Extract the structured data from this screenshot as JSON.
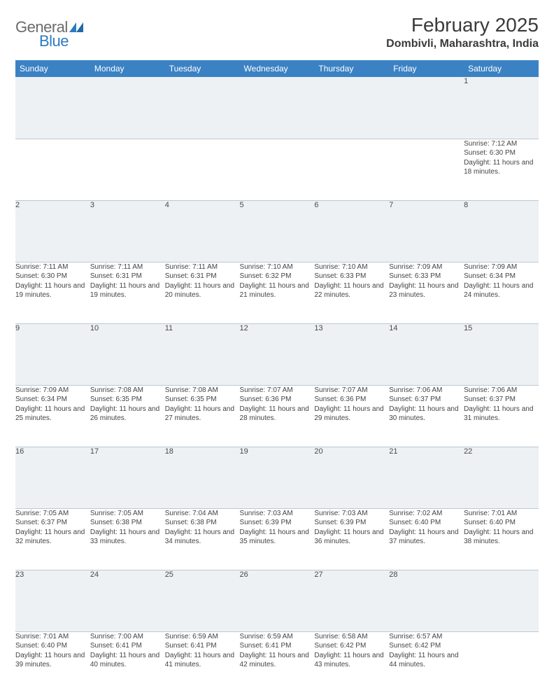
{
  "branding": {
    "logo_general": "General",
    "logo_blue": "Blue",
    "logo_shape_color": "#2d7bbf"
  },
  "header": {
    "title": "February 2025",
    "location": "Dombivli, Maharashtra, India"
  },
  "colors": {
    "header_bg": "#3b82c4",
    "header_text": "#ffffff",
    "daynum_bg": "#eef1f3",
    "border": "#b9c8d6",
    "body_text": "#444"
  },
  "typography": {
    "title_fontsize": 28,
    "subtitle_fontsize": 16,
    "dayheader_fontsize": 12,
    "daynum_fontsize": 11,
    "detail_fontsize": 10
  },
  "calendar": {
    "day_headers": [
      "Sunday",
      "Monday",
      "Tuesday",
      "Wednesday",
      "Thursday",
      "Friday",
      "Saturday"
    ],
    "weeks": [
      {
        "days": [
          {
            "num": "",
            "sunrise": "",
            "sunset": "",
            "daylight": ""
          },
          {
            "num": "",
            "sunrise": "",
            "sunset": "",
            "daylight": ""
          },
          {
            "num": "",
            "sunrise": "",
            "sunset": "",
            "daylight": ""
          },
          {
            "num": "",
            "sunrise": "",
            "sunset": "",
            "daylight": ""
          },
          {
            "num": "",
            "sunrise": "",
            "sunset": "",
            "daylight": ""
          },
          {
            "num": "",
            "sunrise": "",
            "sunset": "",
            "daylight": ""
          },
          {
            "num": "1",
            "sunrise": "Sunrise: 7:12 AM",
            "sunset": "Sunset: 6:30 PM",
            "daylight": "Daylight: 11 hours and 18 minutes."
          }
        ]
      },
      {
        "days": [
          {
            "num": "2",
            "sunrise": "Sunrise: 7:11 AM",
            "sunset": "Sunset: 6:30 PM",
            "daylight": "Daylight: 11 hours and 19 minutes."
          },
          {
            "num": "3",
            "sunrise": "Sunrise: 7:11 AM",
            "sunset": "Sunset: 6:31 PM",
            "daylight": "Daylight: 11 hours and 19 minutes."
          },
          {
            "num": "4",
            "sunrise": "Sunrise: 7:11 AM",
            "sunset": "Sunset: 6:31 PM",
            "daylight": "Daylight: 11 hours and 20 minutes."
          },
          {
            "num": "5",
            "sunrise": "Sunrise: 7:10 AM",
            "sunset": "Sunset: 6:32 PM",
            "daylight": "Daylight: 11 hours and 21 minutes."
          },
          {
            "num": "6",
            "sunrise": "Sunrise: 7:10 AM",
            "sunset": "Sunset: 6:33 PM",
            "daylight": "Daylight: 11 hours and 22 minutes."
          },
          {
            "num": "7",
            "sunrise": "Sunrise: 7:09 AM",
            "sunset": "Sunset: 6:33 PM",
            "daylight": "Daylight: 11 hours and 23 minutes."
          },
          {
            "num": "8",
            "sunrise": "Sunrise: 7:09 AM",
            "sunset": "Sunset: 6:34 PM",
            "daylight": "Daylight: 11 hours and 24 minutes."
          }
        ]
      },
      {
        "days": [
          {
            "num": "9",
            "sunrise": "Sunrise: 7:09 AM",
            "sunset": "Sunset: 6:34 PM",
            "daylight": "Daylight: 11 hours and 25 minutes."
          },
          {
            "num": "10",
            "sunrise": "Sunrise: 7:08 AM",
            "sunset": "Sunset: 6:35 PM",
            "daylight": "Daylight: 11 hours and 26 minutes."
          },
          {
            "num": "11",
            "sunrise": "Sunrise: 7:08 AM",
            "sunset": "Sunset: 6:35 PM",
            "daylight": "Daylight: 11 hours and 27 minutes."
          },
          {
            "num": "12",
            "sunrise": "Sunrise: 7:07 AM",
            "sunset": "Sunset: 6:36 PM",
            "daylight": "Daylight: 11 hours and 28 minutes."
          },
          {
            "num": "13",
            "sunrise": "Sunrise: 7:07 AM",
            "sunset": "Sunset: 6:36 PM",
            "daylight": "Daylight: 11 hours and 29 minutes."
          },
          {
            "num": "14",
            "sunrise": "Sunrise: 7:06 AM",
            "sunset": "Sunset: 6:37 PM",
            "daylight": "Daylight: 11 hours and 30 minutes."
          },
          {
            "num": "15",
            "sunrise": "Sunrise: 7:06 AM",
            "sunset": "Sunset: 6:37 PM",
            "daylight": "Daylight: 11 hours and 31 minutes."
          }
        ]
      },
      {
        "days": [
          {
            "num": "16",
            "sunrise": "Sunrise: 7:05 AM",
            "sunset": "Sunset: 6:37 PM",
            "daylight": "Daylight: 11 hours and 32 minutes."
          },
          {
            "num": "17",
            "sunrise": "Sunrise: 7:05 AM",
            "sunset": "Sunset: 6:38 PM",
            "daylight": "Daylight: 11 hours and 33 minutes."
          },
          {
            "num": "18",
            "sunrise": "Sunrise: 7:04 AM",
            "sunset": "Sunset: 6:38 PM",
            "daylight": "Daylight: 11 hours and 34 minutes."
          },
          {
            "num": "19",
            "sunrise": "Sunrise: 7:03 AM",
            "sunset": "Sunset: 6:39 PM",
            "daylight": "Daylight: 11 hours and 35 minutes."
          },
          {
            "num": "20",
            "sunrise": "Sunrise: 7:03 AM",
            "sunset": "Sunset: 6:39 PM",
            "daylight": "Daylight: 11 hours and 36 minutes."
          },
          {
            "num": "21",
            "sunrise": "Sunrise: 7:02 AM",
            "sunset": "Sunset: 6:40 PM",
            "daylight": "Daylight: 11 hours and 37 minutes."
          },
          {
            "num": "22",
            "sunrise": "Sunrise: 7:01 AM",
            "sunset": "Sunset: 6:40 PM",
            "daylight": "Daylight: 11 hours and 38 minutes."
          }
        ]
      },
      {
        "days": [
          {
            "num": "23",
            "sunrise": "Sunrise: 7:01 AM",
            "sunset": "Sunset: 6:40 PM",
            "daylight": "Daylight: 11 hours and 39 minutes."
          },
          {
            "num": "24",
            "sunrise": "Sunrise: 7:00 AM",
            "sunset": "Sunset: 6:41 PM",
            "daylight": "Daylight: 11 hours and 40 minutes."
          },
          {
            "num": "25",
            "sunrise": "Sunrise: 6:59 AM",
            "sunset": "Sunset: 6:41 PM",
            "daylight": "Daylight: 11 hours and 41 minutes."
          },
          {
            "num": "26",
            "sunrise": "Sunrise: 6:59 AM",
            "sunset": "Sunset: 6:41 PM",
            "daylight": "Daylight: 11 hours and 42 minutes."
          },
          {
            "num": "27",
            "sunrise": "Sunrise: 6:58 AM",
            "sunset": "Sunset: 6:42 PM",
            "daylight": "Daylight: 11 hours and 43 minutes."
          },
          {
            "num": "28",
            "sunrise": "Sunrise: 6:57 AM",
            "sunset": "Sunset: 6:42 PM",
            "daylight": "Daylight: 11 hours and 44 minutes."
          },
          {
            "num": "",
            "sunrise": "",
            "sunset": "",
            "daylight": ""
          }
        ]
      }
    ]
  }
}
